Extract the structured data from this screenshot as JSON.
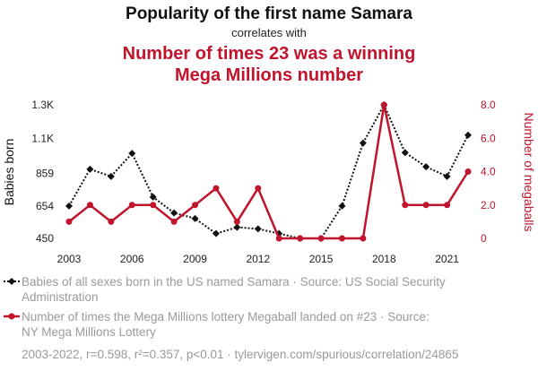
{
  "chart_data": {
    "type": "line",
    "title": "Popularity of the first name Samara",
    "subtitle": "correlates with",
    "title2_lines": [
      "Number of times 23 was a winning",
      "Mega Millions number"
    ],
    "x": [
      2003,
      2004,
      2005,
      2006,
      2007,
      2008,
      2009,
      2010,
      2011,
      2012,
      2013,
      2014,
      2015,
      2016,
      2017,
      2018,
      2019,
      2020,
      2021,
      2022
    ],
    "xticks": [
      "2003",
      "2006",
      "2009",
      "2012",
      "2015",
      "2018",
      "2021"
    ],
    "xtick_values": [
      2003,
      2006,
      2009,
      2012,
      2015,
      2018,
      2021
    ],
    "xlim": [
      2003,
      2022
    ],
    "series": [
      {
        "name": "Babies of all sexes born in the US named Samara",
        "axis": "left",
        "color": "#111111",
        "values": [
          654,
          885,
          840,
          985,
          710,
          610,
          575,
          480,
          520,
          510,
          480,
          450,
          450,
          654,
          1050,
          1290,
          990,
          900,
          840,
          1100
        ]
      },
      {
        "name": "Number of times the Mega Millions lottery Megaball landed on #23",
        "axis": "right",
        "color": "#c0142d",
        "values": [
          1,
          2,
          1,
          2,
          2,
          1,
          2,
          3,
          1,
          3,
          0,
          0,
          0,
          0,
          0,
          8,
          2,
          2,
          2,
          4
        ]
      }
    ],
    "ylabel_left": "Babies born",
    "ylim_left": [
      450,
      1290
    ],
    "yticks_left": [
      "450",
      "654",
      "859",
      "1.1K",
      "1.3K"
    ],
    "ytick_values_left": [
      450,
      654,
      859,
      1080,
      1290
    ],
    "ylabel_right": "Number of megaballs",
    "ylim_right": [
      0,
      8
    ],
    "yticks_right": [
      "0",
      "2.0",
      "4.0",
      "6.0",
      "8.0"
    ],
    "ytick_values_right": [
      0,
      2,
      4,
      6,
      8
    ],
    "grid": false,
    "legend": [
      {
        "lines": [
          "Babies of all sexes born in the US named Samara · Source: US Social Security",
          "Administration"
        ]
      },
      {
        "lines": [
          "Number of times the Mega Millions lottery Megaball landed on #23 · Source:",
          "NY Mega Millions Lottery"
        ]
      }
    ],
    "legend_position": "bottom",
    "footnote": "2003-2022, r=0.598, r²=0.357, p<0.01 · tylervigen.com/spurious/correlation/24865"
  }
}
